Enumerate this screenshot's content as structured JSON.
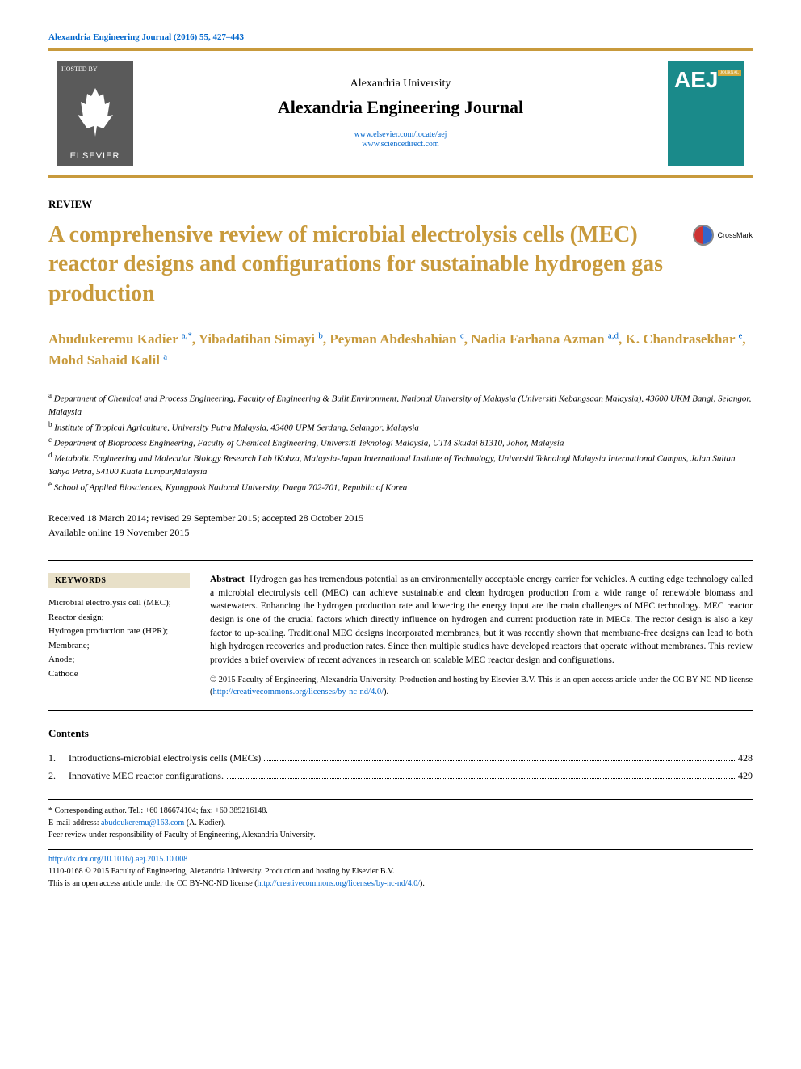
{
  "journal_ref": "Alexandria Engineering Journal (2016) 55, 427–443",
  "hosted_by": "HOSTED BY",
  "elsevier": "ELSEVIER",
  "university": "Alexandria University",
  "journal_name": "Alexandria Engineering Journal",
  "journal_link1": "www.elsevier.com/locate/aej",
  "journal_link2": "www.sciencedirect.com",
  "cover_letters": "AEJ",
  "cover_label": "JOURNAL",
  "article_type": "REVIEW",
  "title": "A comprehensive review of microbial electrolysis cells (MEC) reactor designs and configurations for sustainable hydrogen gas production",
  "crossmark": "CrossMark",
  "authors_html": "Abudukeremu Kadier <sup>a,</sup><sup class='sup-star'>*</sup>, Yibadatihan Simayi <sup>b</sup>, Peyman Abdeshahian <sup>c</sup>, Nadia Farhana Azman <sup>a,d</sup>, K. Chandrasekhar <sup>e</sup>, Mohd Sahaid Kalil <sup>a</sup>",
  "affiliations": [
    {
      "sup": "a",
      "text": "Department of Chemical and Process Engineering, Faculty of Engineering & Built Environment, National University of Malaysia (Universiti Kebangsaan Malaysia), 43600 UKM Bangi, Selangor, Malaysia"
    },
    {
      "sup": "b",
      "text": "Institute of Tropical Agriculture, University Putra Malaysia, 43400 UPM Serdang, Selangor, Malaysia"
    },
    {
      "sup": "c",
      "text": "Department of Bioprocess Engineering, Faculty of Chemical Engineering, Universiti Teknologi Malaysia, UTM Skudai 81310, Johor, Malaysia"
    },
    {
      "sup": "d",
      "text": "Metabolic Engineering and Molecular Biology Research Lab iKohza, Malaysia-Japan International Institute of Technology, Universiti Teknologi Malaysia International Campus, Jalan Sultan Yahya Petra, 54100 Kuala Lumpur,Malaysia"
    },
    {
      "sup": "e",
      "text": "School of Applied Biosciences, Kyungpook National University, Daegu 702-701, Republic of Korea"
    }
  ],
  "dates_line1": "Received 18 March 2014; revised 29 September 2015; accepted 28 October 2015",
  "dates_line2": "Available online 19 November 2015",
  "keywords_heading": "KEYWORDS",
  "keywords": [
    "Microbial electrolysis cell (MEC);",
    "Reactor design;",
    "Hydrogen production rate (HPR);",
    "Membrane;",
    "Anode;",
    "Cathode"
  ],
  "abstract_label": "Abstract",
  "abstract_text": "Hydrogen gas has tremendous potential as an environmentally acceptable energy carrier for vehicles. A cutting edge technology called a microbial electrolysis cell (MEC) can achieve sustainable and clean hydrogen production from a wide range of renewable biomass and wastewaters. Enhancing the hydrogen production rate and lowering the energy input are the main challenges of MEC technology. MEC reactor design is one of the crucial factors which directly influence on hydrogen and current production rate in MECs. The rector design is also a key factor to up-scaling. Traditional MEC designs incorporated membranes, but it was recently shown that membrane-free designs can lead to both high hydrogen recoveries and production rates. Since then multiple studies have developed reactors that operate without membranes. This review provides a brief overview of recent advances in research on scalable MEC reactor design and configurations.",
  "copyright": "© 2015 Faculty of Engineering, Alexandria University. Production and hosting by Elsevier B.V. This is an open access article under the CC BY-NC-ND license (",
  "license_url": "http://creativecommons.org/licenses/by-nc-nd/4.0/",
  "copyright_close": ").",
  "contents_heading": "Contents",
  "contents": [
    {
      "num": "1.",
      "title": "Introductions-microbial electrolysis cells (MECs)",
      "page": "428"
    },
    {
      "num": "2.",
      "title": "Innovative MEC reactor configurations.",
      "page": "429"
    }
  ],
  "footer": {
    "corr": "* Corresponding author. Tel.: +60 186674104; fax: +60 389216148.",
    "email_label": "E-mail address: ",
    "email": "abudoukeremu@163.com",
    "email_suffix": " (A. Kadier).",
    "peer": "Peer review under responsibility of Faculty of Engineering, Alexandria University.",
    "doi": "http://dx.doi.org/10.1016/j.aej.2015.10.008",
    "issn_line": "1110-0168 © 2015 Faculty of Engineering, Alexandria University. Production and hosting by Elsevier B.V.",
    "oa_line": "This is an open access article under the CC BY-NC-ND license (",
    "oa_url": "http://creativecommons.org/licenses/by-nc-nd/4.0/",
    "oa_close": ")."
  }
}
